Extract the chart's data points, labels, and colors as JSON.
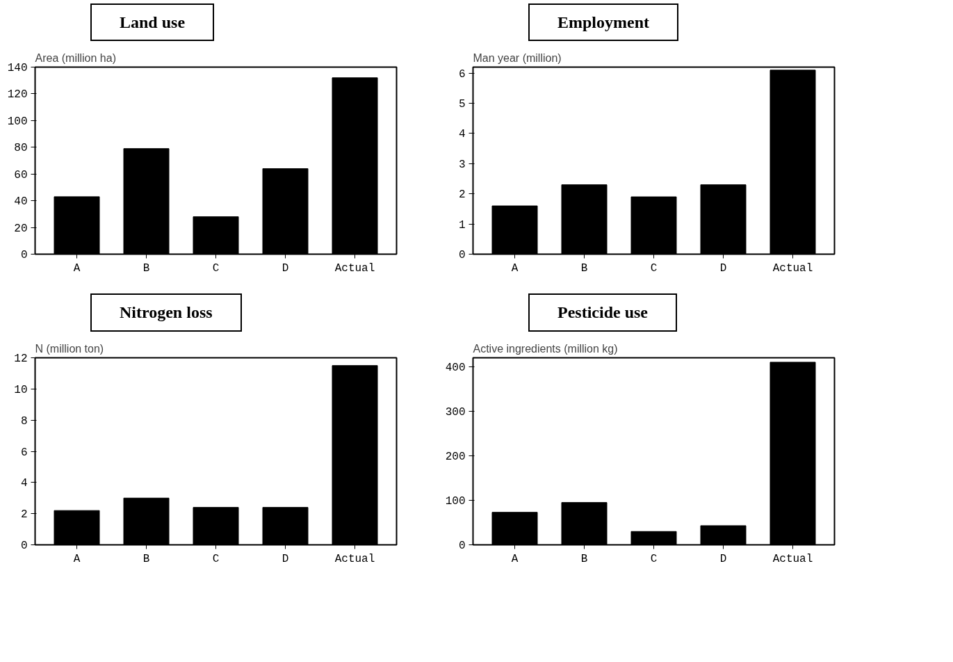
{
  "chart_data": [
    {
      "type": "bar",
      "title": "Land use",
      "ylabel": "Area (million ha)",
      "categories": [
        "A",
        "B",
        "C",
        "D",
        "Actual"
      ],
      "values": [
        43,
        79,
        28,
        64,
        132
      ],
      "color": "#000000",
      "ylim": [
        0,
        140
      ],
      "yticks": [
        0,
        20,
        40,
        60,
        80,
        100,
        120,
        140
      ]
    },
    {
      "type": "bar",
      "title": "Employment",
      "ylabel": "Man year (million)",
      "categories": [
        "A",
        "B",
        "C",
        "D",
        "Actual"
      ],
      "values": [
        1.6,
        2.3,
        1.9,
        2.3,
        6.1
      ],
      "color": "#000000",
      "ylim": [
        0,
        6.2
      ],
      "yticks": [
        0,
        1,
        2,
        3,
        4,
        5,
        6
      ]
    },
    {
      "type": "bar",
      "title": "Nitrogen loss",
      "ylabel": "N (million ton)",
      "categories": [
        "A",
        "B",
        "C",
        "D",
        "Actual"
      ],
      "values": [
        2.2,
        3.0,
        2.4,
        2.4,
        11.5
      ],
      "color": "#000000",
      "ylim": [
        0,
        12
      ],
      "yticks": [
        0,
        2,
        4,
        6,
        8,
        10,
        12
      ]
    },
    {
      "type": "bar",
      "title": "Pesticide use",
      "ylabel": "Active ingredients (million kg)",
      "categories": [
        "A",
        "B",
        "C",
        "D",
        "Actual"
      ],
      "values": [
        73,
        95,
        30,
        43,
        410
      ],
      "color": "#000000",
      "ylim": [
        0,
        420
      ],
      "yticks": [
        0,
        100,
        200,
        300,
        400
      ]
    }
  ]
}
